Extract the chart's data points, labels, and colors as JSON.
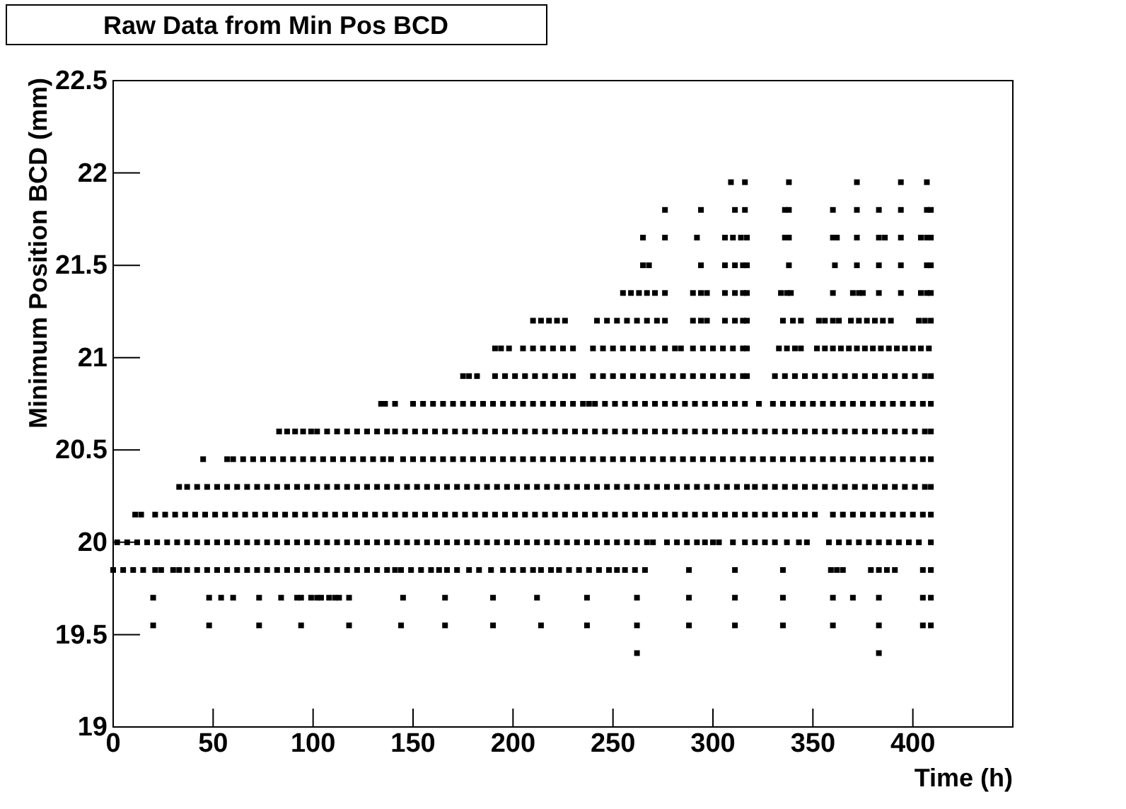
{
  "chart_data": {
    "type": "scatter",
    "title": "Raw Data from Min Pos BCD",
    "xlabel": "Time (h)",
    "ylabel": "Minimum Position BCD (mm)",
    "xlim": [
      0,
      450
    ],
    "ylim": [
      19,
      22.5
    ],
    "xticks": [
      0,
      50,
      100,
      150,
      200,
      250,
      300,
      350,
      400
    ],
    "yticks": [
      19,
      19.5,
      20,
      20.5,
      21,
      21.5,
      22,
      22.5
    ],
    "grid": false,
    "marker": "square",
    "series": [
      {
        "color": "#000000",
        "x": [
          262,
          383
        ],
        "values": [
          19.4,
          19.4
        ]
      },
      {
        "color": "#000000",
        "x": [
          20,
          48,
          73,
          94,
          118,
          144,
          166,
          190,
          214,
          237,
          262,
          288,
          311,
          335,
          360,
          383,
          405,
          409
        ],
        "values": [
          19.55,
          19.55,
          19.55,
          19.55,
          19.55,
          19.55,
          19.55,
          19.55,
          19.55,
          19.55,
          19.55,
          19.55,
          19.55,
          19.55,
          19.55,
          19.55,
          19.55,
          19.55
        ]
      },
      {
        "color": "#000000",
        "x": [
          20,
          48,
          54,
          60,
          73,
          84,
          92,
          94,
          99,
          102,
          104,
          108,
          111,
          113,
          118,
          145,
          166,
          190,
          212,
          237,
          262,
          288,
          311,
          335,
          360,
          370,
          383,
          405,
          409
        ],
        "values": [
          19.7,
          19.7,
          19.7,
          19.7,
          19.7,
          19.7,
          19.7,
          19.7,
          19.7,
          19.7,
          19.7,
          19.7,
          19.7,
          19.7,
          19.7,
          19.7,
          19.7,
          19.7,
          19.7,
          19.7,
          19.7,
          19.7,
          19.7,
          19.7,
          19.7,
          19.7,
          19.7,
          19.7,
          19.7
        ]
      },
      {
        "color": "#000000",
        "x": [
          0,
          5,
          10,
          15,
          21,
          24,
          30,
          33,
          37,
          42,
          47,
          52,
          57,
          62,
          67,
          72,
          77,
          82,
          87,
          92,
          97,
          102,
          107,
          112,
          117,
          122,
          127,
          132,
          137,
          141,
          144,
          149,
          154,
          159,
          163,
          167,
          172,
          178,
          183,
          189,
          195,
          200,
          205,
          210,
          214,
          219,
          223,
          228,
          233,
          238,
          243,
          248,
          252,
          256,
          261,
          266,
          288,
          311,
          335,
          359,
          362,
          365,
          379,
          383,
          387,
          391,
          405,
          409
        ],
        "values": [
          19.85,
          19.85,
          19.85,
          19.85,
          19.85,
          19.85,
          19.85,
          19.85,
          19.85,
          19.85,
          19.85,
          19.85,
          19.85,
          19.85,
          19.85,
          19.85,
          19.85,
          19.85,
          19.85,
          19.85,
          19.85,
          19.85,
          19.85,
          19.85,
          19.85,
          19.85,
          19.85,
          19.85,
          19.85,
          19.85,
          19.85,
          19.85,
          19.85,
          19.85,
          19.85,
          19.85,
          19.85,
          19.85,
          19.85,
          19.85,
          19.85,
          19.85,
          19.85,
          19.85,
          19.85,
          19.85,
          19.85,
          19.85,
          19.85,
          19.85,
          19.85,
          19.85,
          19.85,
          19.85,
          19.85,
          19.85,
          19.85,
          19.85,
          19.85,
          19.85,
          19.85,
          19.85,
          19.85,
          19.85,
          19.85,
          19.85,
          19.85,
          19.85
        ]
      },
      {
        "color": "#000000",
        "x": [
          2,
          7,
          12,
          17,
          22,
          27,
          32,
          37,
          42,
          47,
          52,
          57,
          62,
          67,
          72,
          77,
          82,
          87,
          92,
          97,
          102,
          107,
          112,
          117,
          122,
          127,
          132,
          137,
          142,
          147,
          152,
          157,
          162,
          167,
          172,
          177,
          182,
          187,
          192,
          197,
          202,
          207,
          212,
          217,
          222,
          227,
          232,
          237,
          242,
          247,
          252,
          257,
          262,
          267,
          270,
          277,
          282,
          287,
          292,
          296,
          300,
          303,
          310,
          316,
          321,
          326,
          331,
          337,
          343,
          347,
          358,
          363,
          368,
          373,
          378,
          383,
          388,
          393,
          398,
          403,
          409
        ],
        "values": [
          20,
          20,
          20,
          20,
          20,
          20,
          20,
          20,
          20,
          20,
          20,
          20,
          20,
          20,
          20,
          20,
          20,
          20,
          20,
          20,
          20,
          20,
          20,
          20,
          20,
          20,
          20,
          20,
          20,
          20,
          20,
          20,
          20,
          20,
          20,
          20,
          20,
          20,
          20,
          20,
          20,
          20,
          20,
          20,
          20,
          20,
          20,
          20,
          20,
          20,
          20,
          20,
          20,
          20,
          20,
          20,
          20,
          20,
          20,
          20,
          20,
          20,
          20,
          20,
          20,
          20,
          20,
          20,
          20,
          20,
          20,
          20,
          20,
          20,
          20,
          20,
          20,
          20,
          20,
          20,
          20
        ]
      },
      {
        "color": "#000000",
        "x": [
          11,
          14,
          21,
          26,
          31,
          36,
          41,
          46,
          51,
          56,
          61,
          66,
          71,
          76,
          81,
          86,
          91,
          96,
          101,
          106,
          111,
          116,
          121,
          126,
          131,
          136,
          141,
          146,
          151,
          156,
          161,
          166,
          171,
          176,
          181,
          186,
          191,
          196,
          201,
          206,
          211,
          216,
          221,
          226,
          231,
          236,
          241,
          246,
          251,
          256,
          261,
          266,
          271,
          276,
          281,
          286,
          291,
          296,
          301,
          306,
          311,
          316,
          321,
          326,
          331,
          336,
          341,
          346,
          351,
          360,
          365,
          370,
          375,
          380,
          385,
          390,
          395,
          400,
          405,
          409
        ],
        "values": [
          20.15,
          20.15,
          20.15,
          20.15,
          20.15,
          20.15,
          20.15,
          20.15,
          20.15,
          20.15,
          20.15,
          20.15,
          20.15,
          20.15,
          20.15,
          20.15,
          20.15,
          20.15,
          20.15,
          20.15,
          20.15,
          20.15,
          20.15,
          20.15,
          20.15,
          20.15,
          20.15,
          20.15,
          20.15,
          20.15,
          20.15,
          20.15,
          20.15,
          20.15,
          20.15,
          20.15,
          20.15,
          20.15,
          20.15,
          20.15,
          20.15,
          20.15,
          20.15,
          20.15,
          20.15,
          20.15,
          20.15,
          20.15,
          20.15,
          20.15,
          20.15,
          20.15,
          20.15,
          20.15,
          20.15,
          20.15,
          20.15,
          20.15,
          20.15,
          20.15,
          20.15,
          20.15,
          20.15,
          20.15,
          20.15,
          20.15,
          20.15,
          20.15,
          20.15,
          20.15,
          20.15,
          20.15,
          20.15,
          20.15,
          20.15,
          20.15,
          20.15,
          20.15,
          20.15,
          20.15
        ]
      },
      {
        "color": "#000000",
        "x": [
          33,
          37,
          42,
          47,
          52,
          57,
          62,
          67,
          72,
          77,
          82,
          87,
          92,
          97,
          102,
          107,
          112,
          117,
          122,
          127,
          132,
          137,
          142,
          147,
          152,
          157,
          162,
          167,
          172,
          177,
          182,
          187,
          192,
          197,
          202,
          207,
          212,
          217,
          222,
          227,
          232,
          237,
          242,
          247,
          252,
          257,
          262,
          267,
          272,
          277,
          282,
          287,
          292,
          297,
          302,
          307,
          312,
          317,
          321,
          326,
          331,
          336,
          341,
          346,
          351,
          356,
          361,
          366,
          371,
          376,
          381,
          386,
          391,
          396,
          401,
          406,
          409
        ],
        "values": [
          20.3,
          20.3,
          20.3,
          20.3,
          20.3,
          20.3,
          20.3,
          20.3,
          20.3,
          20.3,
          20.3,
          20.3,
          20.3,
          20.3,
          20.3,
          20.3,
          20.3,
          20.3,
          20.3,
          20.3,
          20.3,
          20.3,
          20.3,
          20.3,
          20.3,
          20.3,
          20.3,
          20.3,
          20.3,
          20.3,
          20.3,
          20.3,
          20.3,
          20.3,
          20.3,
          20.3,
          20.3,
          20.3,
          20.3,
          20.3,
          20.3,
          20.3,
          20.3,
          20.3,
          20.3,
          20.3,
          20.3,
          20.3,
          20.3,
          20.3,
          20.3,
          20.3,
          20.3,
          20.3,
          20.3,
          20.3,
          20.3,
          20.3,
          20.3,
          20.3,
          20.3,
          20.3,
          20.3,
          20.3,
          20.3,
          20.3,
          20.3,
          20.3,
          20.3,
          20.3,
          20.3,
          20.3,
          20.3,
          20.3,
          20.3,
          20.3,
          20.3
        ]
      },
      {
        "color": "#000000",
        "x": [
          45,
          57,
          60,
          65,
          70,
          75,
          80,
          85,
          90,
          95,
          100,
          105,
          110,
          115,
          120,
          125,
          130,
          135,
          139,
          145,
          150,
          155,
          160,
          165,
          170,
          175,
          180,
          185,
          190,
          195,
          200,
          205,
          210,
          215,
          220,
          225,
          230,
          235,
          240,
          245,
          250,
          255,
          260,
          265,
          270,
          275,
          280,
          285,
          290,
          295,
          300,
          305,
          310,
          315,
          320,
          325,
          330,
          335,
          340,
          345,
          350,
          355,
          360,
          365,
          370,
          375,
          380,
          385,
          390,
          395,
          400,
          405,
          409
        ],
        "values": [
          20.45,
          20.45,
          20.45,
          20.45,
          20.45,
          20.45,
          20.45,
          20.45,
          20.45,
          20.45,
          20.45,
          20.45,
          20.45,
          20.45,
          20.45,
          20.45,
          20.45,
          20.45,
          20.45,
          20.45,
          20.45,
          20.45,
          20.45,
          20.45,
          20.45,
          20.45,
          20.45,
          20.45,
          20.45,
          20.45,
          20.45,
          20.45,
          20.45,
          20.45,
          20.45,
          20.45,
          20.45,
          20.45,
          20.45,
          20.45,
          20.45,
          20.45,
          20.45,
          20.45,
          20.45,
          20.45,
          20.45,
          20.45,
          20.45,
          20.45,
          20.45,
          20.45,
          20.45,
          20.45,
          20.45,
          20.45,
          20.45,
          20.45,
          20.45,
          20.45,
          20.45,
          20.45,
          20.45,
          20.45,
          20.45,
          20.45,
          20.45,
          20.45,
          20.45,
          20.45,
          20.45,
          20.45,
          20.45
        ]
      },
      {
        "color": "#000000",
        "x": [
          83,
          87,
          91,
          95,
          99,
          102,
          107,
          112,
          117,
          122,
          127,
          132,
          137,
          141,
          146,
          151,
          156,
          161,
          166,
          171,
          176,
          181,
          186,
          191,
          196,
          201,
          206,
          211,
          216,
          221,
          226,
          231,
          236,
          241,
          246,
          251,
          256,
          261,
          266,
          271,
          276,
          281,
          286,
          291,
          296,
          301,
          306,
          311,
          316,
          321,
          326,
          331,
          336,
          341,
          346,
          351,
          356,
          361,
          366,
          371,
          376,
          381,
          386,
          391,
          396,
          401,
          406,
          409
        ],
        "values": [
          20.6,
          20.6,
          20.6,
          20.6,
          20.6,
          20.6,
          20.6,
          20.6,
          20.6,
          20.6,
          20.6,
          20.6,
          20.6,
          20.6,
          20.6,
          20.6,
          20.6,
          20.6,
          20.6,
          20.6,
          20.6,
          20.6,
          20.6,
          20.6,
          20.6,
          20.6,
          20.6,
          20.6,
          20.6,
          20.6,
          20.6,
          20.6,
          20.6,
          20.6,
          20.6,
          20.6,
          20.6,
          20.6,
          20.6,
          20.6,
          20.6,
          20.6,
          20.6,
          20.6,
          20.6,
          20.6,
          20.6,
          20.6,
          20.6,
          20.6,
          20.6,
          20.6,
          20.6,
          20.6,
          20.6,
          20.6,
          20.6,
          20.6,
          20.6,
          20.6,
          20.6,
          20.6,
          20.6,
          20.6,
          20.6,
          20.6,
          20.6,
          20.6
        ]
      },
      {
        "color": "#000000",
        "x": [
          134,
          136,
          141,
          150,
          155,
          160,
          165,
          170,
          175,
          180,
          185,
          190,
          195,
          200,
          205,
          210,
          215,
          220,
          225,
          230,
          235,
          238,
          241,
          246,
          251,
          256,
          261,
          266,
          271,
          276,
          281,
          286,
          291,
          296,
          301,
          306,
          311,
          316,
          323,
          330,
          335,
          340,
          345,
          350,
          355,
          360,
          365,
          370,
          375,
          380,
          385,
          390,
          395,
          400,
          405,
          409
        ],
        "values": [
          20.75,
          20.75,
          20.75,
          20.75,
          20.75,
          20.75,
          20.75,
          20.75,
          20.75,
          20.75,
          20.75,
          20.75,
          20.75,
          20.75,
          20.75,
          20.75,
          20.75,
          20.75,
          20.75,
          20.75,
          20.75,
          20.75,
          20.75,
          20.75,
          20.75,
          20.75,
          20.75,
          20.75,
          20.75,
          20.75,
          20.75,
          20.75,
          20.75,
          20.75,
          20.75,
          20.75,
          20.75,
          20.75,
          20.75,
          20.75,
          20.75,
          20.75,
          20.75,
          20.75,
          20.75,
          20.75,
          20.75,
          20.75,
          20.75,
          20.75,
          20.75,
          20.75,
          20.75,
          20.75,
          20.75,
          20.75
        ]
      },
      {
        "color": "#000000",
        "x": [
          175,
          178,
          182,
          191,
          196,
          201,
          206,
          211,
          216,
          221,
          226,
          230,
          240,
          245,
          250,
          255,
          260,
          265,
          270,
          275,
          280,
          285,
          290,
          295,
          300,
          305,
          310,
          315,
          317,
          331,
          336,
          341,
          346,
          351,
          356,
          361,
          366,
          371,
          376,
          381,
          386,
          391,
          396,
          401,
          406,
          409
        ],
        "values": [
          20.9,
          20.9,
          20.9,
          20.9,
          20.9,
          20.9,
          20.9,
          20.9,
          20.9,
          20.9,
          20.9,
          20.9,
          20.9,
          20.9,
          20.9,
          20.9,
          20.9,
          20.9,
          20.9,
          20.9,
          20.9,
          20.9,
          20.9,
          20.9,
          20.9,
          20.9,
          20.9,
          20.9,
          20.9,
          20.9,
          20.9,
          20.9,
          20.9,
          20.9,
          20.9,
          20.9,
          20.9,
          20.9,
          20.9,
          20.9,
          20.9,
          20.9,
          20.9,
          20.9,
          20.9,
          20.9
        ]
      },
      {
        "color": "#000000",
        "x": [
          191,
          194,
          198,
          205,
          210,
          215,
          220,
          225,
          230,
          240,
          245,
          250,
          255,
          260,
          265,
          270,
          276,
          281,
          284,
          290,
          295,
          300,
          305,
          310,
          315,
          317,
          333,
          337,
          341,
          344,
          352,
          356,
          360,
          364,
          368,
          372,
          376,
          380,
          384,
          388,
          392,
          396,
          400,
          404,
          408
        ],
        "values": [
          21.05,
          21.05,
          21.05,
          21.05,
          21.05,
          21.05,
          21.05,
          21.05,
          21.05,
          21.05,
          21.05,
          21.05,
          21.05,
          21.05,
          21.05,
          21.05,
          21.05,
          21.05,
          21.05,
          21.05,
          21.05,
          21.05,
          21.05,
          21.05,
          21.05,
          21.05,
          21.05,
          21.05,
          21.05,
          21.05,
          21.05,
          21.05,
          21.05,
          21.05,
          21.05,
          21.05,
          21.05,
          21.05,
          21.05,
          21.05,
          21.05,
          21.05,
          21.05,
          21.05,
          21.05
        ]
      },
      {
        "color": "#000000",
        "x": [
          210,
          214,
          218,
          222,
          226,
          242,
          247,
          252,
          257,
          262,
          267,
          272,
          276,
          290,
          294,
          297,
          306,
          311,
          315,
          317,
          335,
          340,
          344,
          353,
          356,
          360,
          363,
          369,
          373,
          377,
          381,
          385,
          389,
          403,
          406,
          409
        ],
        "values": [
          21.2,
          21.2,
          21.2,
          21.2,
          21.2,
          21.2,
          21.2,
          21.2,
          21.2,
          21.2,
          21.2,
          21.2,
          21.2,
          21.2,
          21.2,
          21.2,
          21.2,
          21.2,
          21.2,
          21.2,
          21.2,
          21.2,
          21.2,
          21.2,
          21.2,
          21.2,
          21.2,
          21.2,
          21.2,
          21.2,
          21.2,
          21.2,
          21.2,
          21.2,
          21.2,
          21.2
        ]
      },
      {
        "color": "#000000",
        "x": [
          255,
          259,
          263,
          267,
          271,
          276,
          290,
          294,
          297,
          306,
          311,
          315,
          317,
          334,
          337,
          339,
          360,
          370,
          373,
          375,
          383,
          394,
          404,
          407,
          409
        ],
        "values": [
          21.35,
          21.35,
          21.35,
          21.35,
          21.35,
          21.35,
          21.35,
          21.35,
          21.35,
          21.35,
          21.35,
          21.35,
          21.35,
          21.35,
          21.35,
          21.35,
          21.35,
          21.35,
          21.35,
          21.35,
          21.35,
          21.35,
          21.35,
          21.35,
          21.35
        ]
      },
      {
        "color": "#000000",
        "x": [
          265,
          268,
          294,
          306,
          311,
          315,
          317,
          338,
          361,
          372,
          383,
          394,
          407,
          409
        ],
        "values": [
          21.5,
          21.5,
          21.5,
          21.5,
          21.5,
          21.5,
          21.5,
          21.5,
          21.5,
          21.5,
          21.5,
          21.5,
          21.5,
          21.5
        ]
      },
      {
        "color": "#000000",
        "x": [
          265,
          276,
          292,
          306,
          310,
          314,
          317,
          336,
          338,
          360,
          362,
          372,
          383,
          386,
          394,
          404,
          407,
          409
        ],
        "values": [
          21.65,
          21.65,
          21.65,
          21.65,
          21.65,
          21.65,
          21.65,
          21.65,
          21.65,
          21.65,
          21.65,
          21.65,
          21.65,
          21.65,
          21.65,
          21.65,
          21.65,
          21.65
        ]
      },
      {
        "color": "#000000",
        "x": [
          276,
          294,
          311,
          316,
          336,
          338,
          360,
          372,
          383,
          394,
          407,
          409
        ],
        "values": [
          21.8,
          21.8,
          21.8,
          21.8,
          21.8,
          21.8,
          21.8,
          21.8,
          21.8,
          21.8,
          21.8,
          21.8
        ]
      },
      {
        "color": "#000000",
        "x": [
          309,
          316,
          338,
          372,
          394,
          407
        ],
        "values": [
          21.95,
          21.95,
          21.95,
          21.95,
          21.95,
          21.95
        ]
      }
    ]
  }
}
